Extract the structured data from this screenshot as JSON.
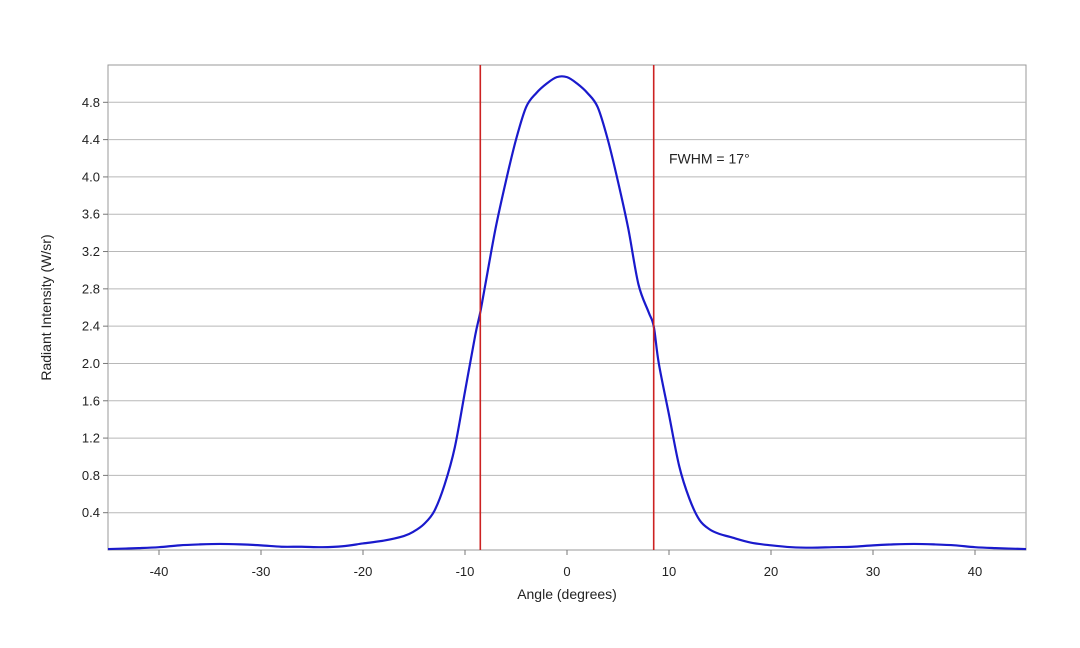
{
  "chart_data": {
    "type": "line",
    "title": "",
    "xlabel": "Angle (degrees)",
    "ylabel": "Radiant Intensity (W/sr)",
    "xlim": [
      -45,
      45
    ],
    "ylim": [
      0,
      5.2
    ],
    "x_ticks": [
      -40,
      -30,
      -20,
      -10,
      0,
      10,
      20,
      30,
      40
    ],
    "x_tick_labels": [
      "-40",
      "-30",
      "-20",
      "-10",
      "0",
      "10",
      "20",
      "30",
      "40"
    ],
    "y_ticks": [
      0.4,
      0.8,
      1.2,
      1.6,
      2.0,
      2.4,
      2.8,
      3.2,
      3.6,
      4.0,
      4.4,
      4.8
    ],
    "y_tick_labels": [
      "0.4",
      "0.8",
      "1.2",
      "1.6",
      "2.0",
      "2.4",
      "2.8",
      "3.2",
      "3.6",
      "4.0",
      "4.4",
      "4.8"
    ],
    "grid": true,
    "series": [
      {
        "color": "#1a1acc",
        "x": [
          -45,
          -42,
          -40,
          -38,
          -36,
          -34,
          -32,
          -30,
          -28,
          -26,
          -24,
          -22,
          -20,
          -18,
          -16,
          -15,
          -14,
          -13,
          -12,
          -11,
          -10,
          -9,
          -8.5,
          -8,
          -7,
          -6,
          -5,
          -4,
          -3,
          -2,
          -1,
          0,
          1,
          2,
          3,
          4,
          5,
          6,
          7,
          8,
          8.5,
          9,
          10,
          11,
          12,
          13,
          14,
          15,
          16,
          18,
          20,
          22,
          24,
          26,
          28,
          30,
          32,
          34,
          36,
          38,
          40,
          42,
          45
        ],
        "y": [
          0.01,
          0.02,
          0.03,
          0.05,
          0.06,
          0.065,
          0.06,
          0.05,
          0.035,
          0.035,
          0.03,
          0.04,
          0.07,
          0.1,
          0.15,
          0.2,
          0.28,
          0.42,
          0.7,
          1.1,
          1.7,
          2.3,
          2.55,
          2.85,
          3.45,
          3.95,
          4.4,
          4.75,
          4.9,
          5.0,
          5.07,
          5.07,
          5.0,
          4.9,
          4.75,
          4.4,
          3.95,
          3.45,
          2.85,
          2.55,
          2.4,
          2.0,
          1.45,
          0.9,
          0.55,
          0.32,
          0.22,
          0.17,
          0.14,
          0.08,
          0.05,
          0.03,
          0.025,
          0.03,
          0.035,
          0.05,
          0.06,
          0.065,
          0.06,
          0.05,
          0.03,
          0.02,
          0.01
        ]
      }
    ],
    "markers": [
      {
        "x": -8.5,
        "color": "#cc2222"
      },
      {
        "x": 8.5,
        "color": "#cc2222"
      }
    ],
    "annotations": [
      {
        "text": "FWHM = 17°",
        "x": 10,
        "y": 4.2
      }
    ]
  }
}
